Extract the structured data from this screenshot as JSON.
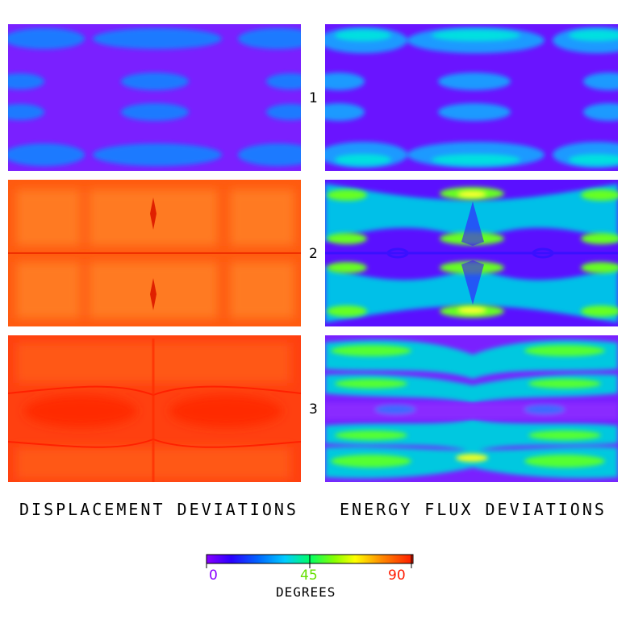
{
  "rows": [
    "1",
    "2",
    "3"
  ],
  "columns": {
    "left_caption": "DISPLACEMENT DEVIATIONS",
    "right_caption": "ENERGY FLUX DEVIATIONS"
  },
  "colorbar": {
    "ticks": [
      {
        "label": "0",
        "color": "#8a00ff"
      },
      {
        "label": "45",
        "color": "#66e000"
      },
      {
        "label": "90",
        "color": "#ff1a00"
      }
    ],
    "units": "DEGREES",
    "colors": [
      "#8a00ff",
      "#2a00ff",
      "#0066ff",
      "#00ccff",
      "#00ff88",
      "#66ff00",
      "#ffff00",
      "#ff9900",
      "#ff3300"
    ]
  }
}
